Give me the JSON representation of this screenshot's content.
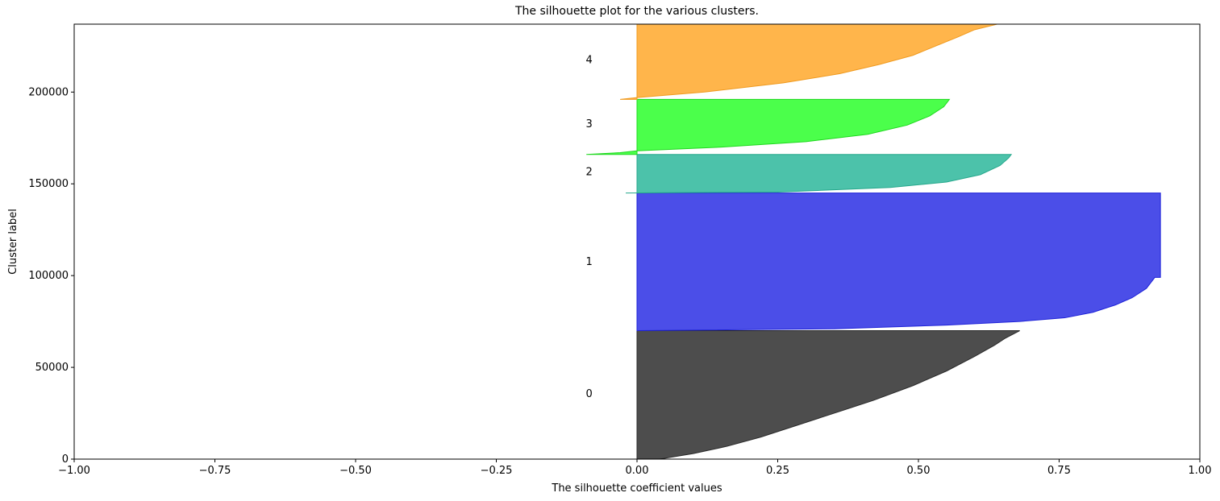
{
  "chart_data": {
    "type": "area",
    "title": "The silhouette plot for the various clusters.",
    "xlabel": "The silhouette coefficient values",
    "ylabel": "Cluster label",
    "xlim": [
      -1.0,
      1.0
    ],
    "ylim": [
      0,
      237000
    ],
    "xticks": [
      -1.0,
      -0.75,
      -0.5,
      -0.25,
      0.0,
      0.25,
      0.5,
      0.75,
      1.0
    ],
    "xtick_labels": [
      "−1.00",
      "−0.75",
      "−0.50",
      "−0.25",
      "0.00",
      "0.25",
      "0.50",
      "0.75",
      "1.00"
    ],
    "yticks": [
      0,
      50000,
      100000,
      150000,
      200000
    ],
    "ytick_labels": [
      "0",
      "50000",
      "100000",
      "150000",
      "200000"
    ],
    "grid": false,
    "cluster_label_x": -0.085,
    "series": [
      {
        "label": "0",
        "color": "#4d4d4d",
        "edge": "#2b2b2b",
        "y_lower": 0,
        "y_upper": 70000,
        "label_y": 36000,
        "profile": [
          [
            0,
            0.04
          ],
          [
            3000,
            0.1
          ],
          [
            7000,
            0.16
          ],
          [
            12000,
            0.22
          ],
          [
            18000,
            0.28
          ],
          [
            25000,
            0.35
          ],
          [
            32000,
            0.42
          ],
          [
            40000,
            0.49
          ],
          [
            48000,
            0.55
          ],
          [
            56000,
            0.6
          ],
          [
            62000,
            0.635
          ],
          [
            66000,
            0.655
          ],
          [
            70000,
            0.68
          ]
        ]
      },
      {
        "label": "1",
        "color": "#4b4ee8",
        "edge": "#1e22d8",
        "y_lower": 70000,
        "y_upper": 145000,
        "label_y": 108000,
        "profile": [
          [
            70000,
            0.0
          ],
          [
            71000,
            0.35
          ],
          [
            73000,
            0.55
          ],
          [
            75000,
            0.68
          ],
          [
            77000,
            0.76
          ],
          [
            80000,
            0.81
          ],
          [
            84000,
            0.85
          ],
          [
            88000,
            0.88
          ],
          [
            93000,
            0.905
          ],
          [
            99000,
            0.92
          ],
          [
            99000,
            0.93
          ],
          [
            145000,
            0.93
          ]
        ]
      },
      {
        "label": "2",
        "color": "#4cc2aa",
        "edge": "#26a88c",
        "y_lower": 145000,
        "y_upper": 166000,
        "label_y": 157000,
        "profile": [
          [
            145000,
            -0.02
          ],
          [
            145500,
            0.25
          ],
          [
            148000,
            0.45
          ],
          [
            151000,
            0.55
          ],
          [
            155000,
            0.61
          ],
          [
            160000,
            0.645
          ],
          [
            164000,
            0.66
          ],
          [
            166000,
            0.665
          ]
        ]
      },
      {
        "label": "3",
        "color": "#4bff4b",
        "edge": "#1fd81f",
        "y_lower": 166000,
        "y_upper": 196000,
        "label_y": 183000,
        "profile": [
          [
            166000,
            -0.09
          ],
          [
            167000,
            -0.03
          ],
          [
            168000,
            0.0
          ],
          [
            170000,
            0.15
          ],
          [
            173000,
            0.3
          ],
          [
            177000,
            0.41
          ],
          [
            182000,
            0.48
          ],
          [
            187000,
            0.52
          ],
          [
            192000,
            0.545
          ],
          [
            196000,
            0.555
          ]
        ]
      },
      {
        "label": "4",
        "color": "#ffb54b",
        "edge": "#f09a1e",
        "y_lower": 196000,
        "y_upper": 237000,
        "label_y": 218000,
        "profile": [
          [
            196000,
            -0.03
          ],
          [
            197000,
            0.0
          ],
          [
            200000,
            0.12
          ],
          [
            205000,
            0.26
          ],
          [
            210000,
            0.36
          ],
          [
            215000,
            0.43
          ],
          [
            220000,
            0.49
          ],
          [
            225000,
            0.53
          ],
          [
            230000,
            0.57
          ],
          [
            234000,
            0.6
          ],
          [
            237000,
            0.64
          ]
        ]
      }
    ]
  }
}
